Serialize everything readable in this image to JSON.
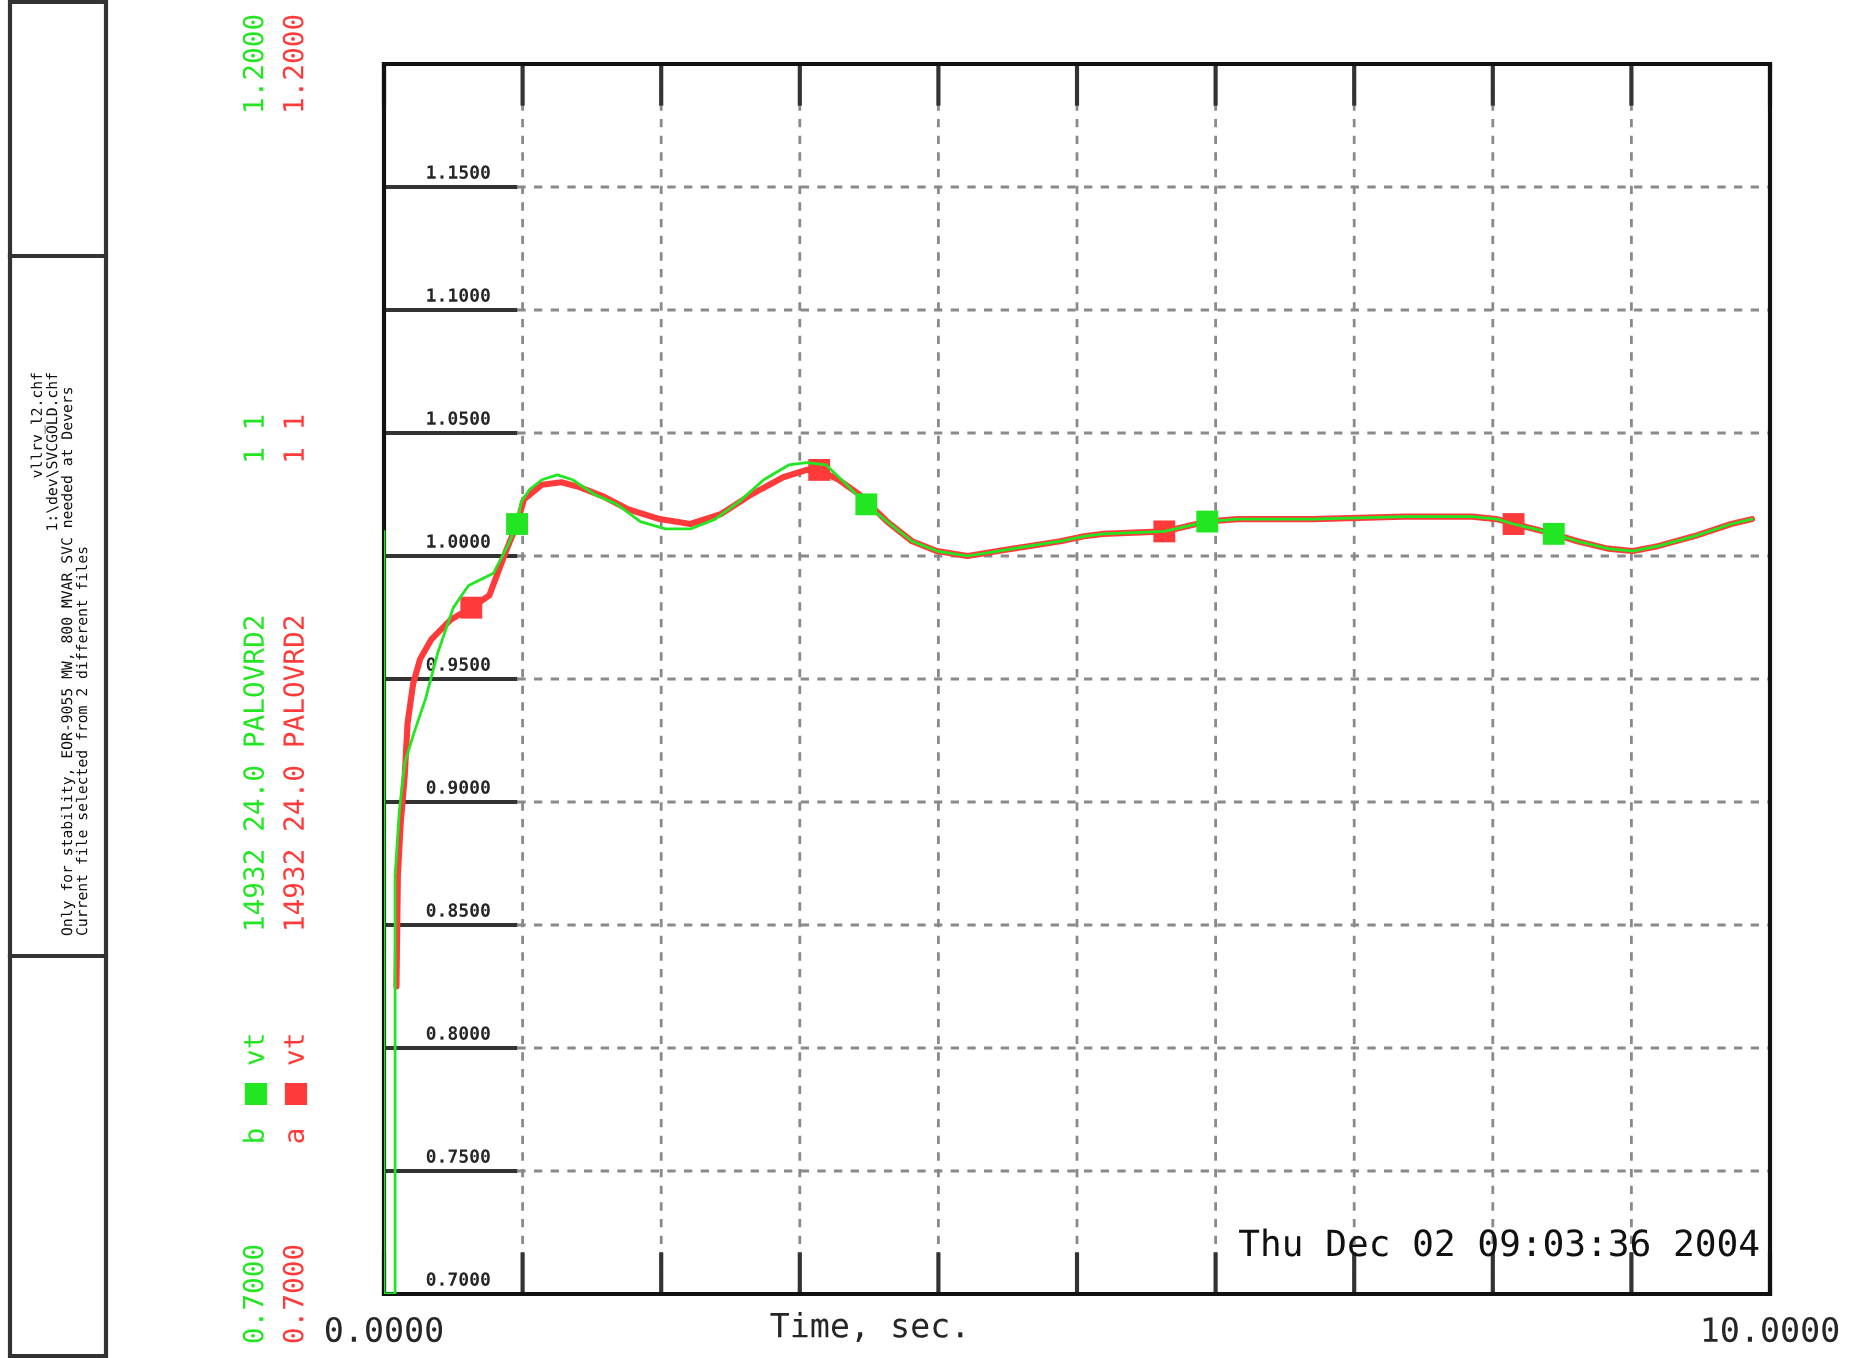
{
  "chart_data": {
    "type": "line",
    "xlabel": "Time, sec.",
    "xlim": [
      0,
      10
    ],
    "xticks": [
      {
        "value": 0,
        "label": "0.0000"
      },
      {
        "value": 1,
        "label": null
      },
      {
        "value": 2,
        "label": null
      },
      {
        "value": 3,
        "label": null
      },
      {
        "value": 4,
        "label": null
      },
      {
        "value": 5,
        "label": null
      },
      {
        "value": 6,
        "label": null
      },
      {
        "value": 7,
        "label": null
      },
      {
        "value": 8,
        "label": null
      },
      {
        "value": 9,
        "label": null
      },
      {
        "value": 10,
        "label": "10.0000"
      }
    ],
    "ylim": [
      0.7,
      1.2
    ],
    "yticks": [
      {
        "value": 0.7,
        "label": "0.7000"
      },
      {
        "value": 0.75,
        "label": "0.7500"
      },
      {
        "value": 0.8,
        "label": "0.8000"
      },
      {
        "value": 0.85,
        "label": "0.8500"
      },
      {
        "value": 0.9,
        "label": "0.9000"
      },
      {
        "value": 0.95,
        "label": "0.9500"
      },
      {
        "value": 1.0,
        "label": "1.0000"
      },
      {
        "value": 1.05,
        "label": "1.0500"
      },
      {
        "value": 1.1,
        "label": "1.1000"
      },
      {
        "value": 1.15,
        "label": "1.1500"
      }
    ],
    "y2lim": [
      0.7,
      1.2
    ],
    "y2ticks": [
      {
        "value": 0.7,
        "label": "0.7000"
      },
      {
        "value": 1.2,
        "label": "1.2000"
      }
    ],
    "y3lim": [
      0.7,
      1.2
    ],
    "y3ticks": [
      {
        "value": 0.7,
        "label": "0.7000"
      },
      {
        "value": 1.2,
        "label": "1.2000"
      }
    ],
    "grid": true,
    "line_style": "solid",
    "series": [
      {
        "name": "b vt      14932 24.0 PALOVRD2         1 1",
        "color": "#22e622",
        "axis": "y3",
        "x": [
          0.0,
          0.0,
          0.08,
          0.08,
          0.11,
          0.15,
          0.21,
          0.3,
          0.39,
          0.5,
          0.61,
          0.79,
          0.9,
          0.96,
          0.99,
          1.05,
          1.14,
          1.25,
          1.36,
          1.52,
          1.68,
          1.85,
          2.03,
          2.21,
          2.39,
          2.56,
          2.74,
          2.92,
          3.05,
          3.19,
          3.32,
          3.48,
          3.63,
          3.81,
          3.99,
          4.21,
          4.43,
          4.65,
          4.88,
          5.05,
          5.19,
          5.63,
          5.94,
          6.16,
          6.7,
          7.36,
          7.59,
          7.85,
          8.03,
          8.15,
          8.3,
          8.44,
          8.61,
          8.83,
          9.01,
          9.19,
          9.45,
          9.72,
          9.87
        ],
        "values": [
          1.01,
          0.7,
          0.7,
          0.87,
          0.896,
          0.916,
          0.927,
          0.942,
          0.961,
          0.979,
          0.988,
          0.993,
          1.005,
          1.013,
          1.022,
          1.027,
          1.031,
          1.033,
          1.031,
          1.025,
          1.021,
          1.014,
          1.011,
          1.011,
          1.015,
          1.022,
          1.031,
          1.037,
          1.038,
          1.037,
          1.03,
          1.021,
          1.014,
          1.006,
          1.002,
          1.0,
          1.002,
          1.004,
          1.006,
          1.008,
          1.009,
          1.01,
          1.014,
          1.015,
          1.015,
          1.016,
          1.016,
          1.016,
          1.015,
          1.013,
          1.011,
          1.009,
          1.006,
          1.003,
          1.002,
          1.004,
          1.008,
          1.013,
          1.015
        ]
      },
      {
        "name": "a vt      14932 24.0 PALOVRD2         1 1",
        "color": "#ff3a3a",
        "axis": "y2",
        "x": [
          0.09,
          0.1,
          0.12,
          0.15,
          0.17,
          0.21,
          0.26,
          0.34,
          0.48,
          0.63,
          0.76,
          0.88,
          0.96,
          1.01,
          1.14,
          1.28,
          1.41,
          1.59,
          1.76,
          1.99,
          2.21,
          2.43,
          2.65,
          2.88,
          3.05,
          3.14,
          3.28,
          3.43,
          3.63,
          3.81,
          3.99,
          4.21,
          4.43,
          4.65,
          4.88,
          5.05,
          5.19,
          5.63,
          5.94,
          6.16,
          6.7,
          7.36,
          7.59,
          7.85,
          8.03,
          8.15,
          8.3,
          8.44,
          8.61,
          8.83,
          9.01,
          9.19,
          9.45,
          9.72,
          9.87
        ],
        "values": [
          0.825,
          0.87,
          0.891,
          0.911,
          0.932,
          0.948,
          0.958,
          0.966,
          0.974,
          0.979,
          0.984,
          1.002,
          1.013,
          1.023,
          1.029,
          1.03,
          1.028,
          1.024,
          1.019,
          1.015,
          1.013,
          1.017,
          1.025,
          1.032,
          1.035,
          1.035,
          1.031,
          1.025,
          1.014,
          1.006,
          1.002,
          1.0,
          1.002,
          1.004,
          1.006,
          1.008,
          1.009,
          1.01,
          1.014,
          1.015,
          1.015,
          1.016,
          1.016,
          1.016,
          1.015,
          1.013,
          1.011,
          1.009,
          1.006,
          1.003,
          1.002,
          1.004,
          1.008,
          1.013,
          1.015
        ]
      },
      {
        "type": "scatter",
        "marker": "square",
        "color": "#22e622",
        "axis": "y3",
        "x": [
          0.96,
          3.48,
          5.94,
          8.44
        ],
        "values": [
          1.013,
          1.021,
          1.014,
          1.009
        ]
      },
      {
        "type": "scatter",
        "marker": "square",
        "color": "#ff3a3a",
        "axis": "y2",
        "x": [
          0.63,
          3.14,
          5.63,
          8.15
        ],
        "values": [
          0.979,
          1.035,
          1.01,
          1.013
        ]
      }
    ],
    "annotations": [
      "vllrv_l2.chf",
      "1:\\dev\\SVCGOLD.chf",
      "Only for stability, EOR-9055 MW, 800 MVAR SVC needed at Devers",
      "Current file selected from 2 different files",
      "Thu Dec 02 09:03:36 2004"
    ]
  }
}
